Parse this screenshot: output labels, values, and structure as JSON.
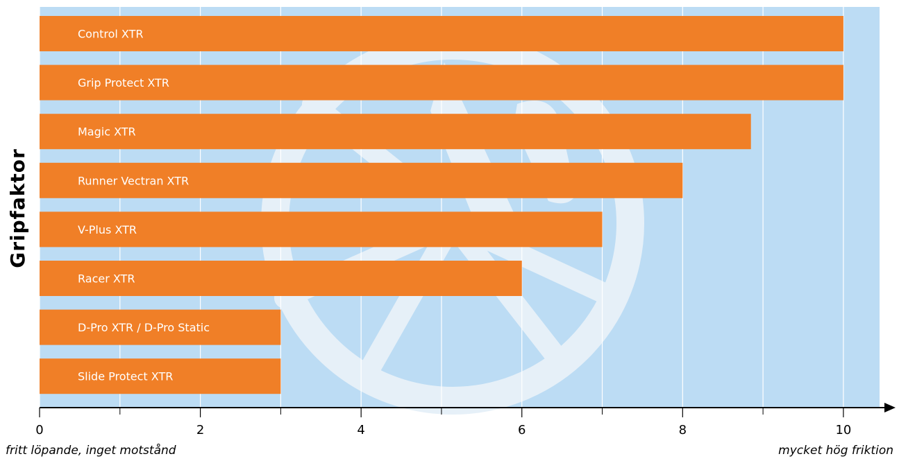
{
  "chart_data": {
    "type": "bar",
    "orientation": "horizontal",
    "categories": [
      "Control XTR",
      "Grip Protect XTR",
      "Magic XTR",
      "Runner Vectran XTR",
      "V-Plus XTR",
      "Racer XTR",
      "D-Pro XTR / D-Pro Static",
      "Slide Protect XTR"
    ],
    "values": [
      10,
      10,
      8.85,
      8,
      7,
      6,
      3,
      3
    ],
    "ylabel": "Gripfaktor",
    "xlabel_left": "fritt löpande, inget motstånd",
    "xlabel_right": "mycket hög friktion",
    "xticks": [
      "0",
      "2",
      "4",
      "6",
      "8",
      "10"
    ],
    "xtick_values": [
      0,
      2,
      4,
      6,
      8,
      10
    ],
    "xlim": [
      0,
      10.45
    ],
    "minor_ticks": [
      1,
      3,
      5,
      7,
      9
    ],
    "grid": true,
    "colors": {
      "bar": "#f07f27",
      "plot_background": "#bcdcf4",
      "watermark": "#e6f0f8",
      "bar_label": "#ffffff",
      "gridline": "#ffffff"
    }
  }
}
